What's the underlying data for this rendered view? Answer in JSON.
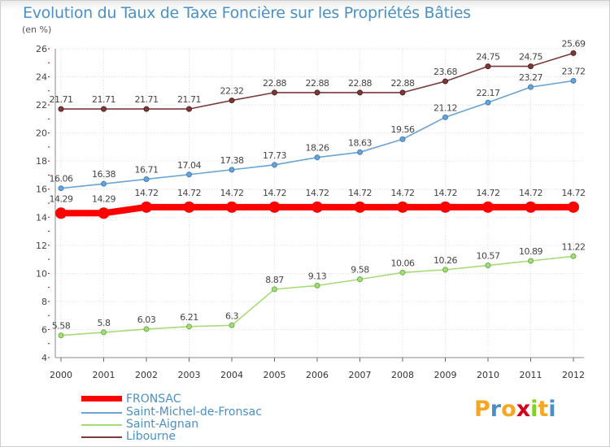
{
  "title": "Evolution du Taux de Taxe Foncière sur les Propriétés Bâties",
  "unit_label": "(en %)",
  "logo": {
    "letters": [
      "P",
      "r",
      "o",
      "x",
      "i",
      "t",
      "i"
    ],
    "colors": [
      "#f5a623",
      "#4a90c4",
      "#f5a623",
      "#d0021b",
      "#7ed321",
      "#f5a623",
      "#4a90c4"
    ]
  },
  "chart_data": {
    "type": "line",
    "title": "Evolution du Taux de Taxe Foncière sur les Propriétés Bâties",
    "ylabel": "(en %)",
    "xlabel": "",
    "x": [
      "2000",
      "2001",
      "2002",
      "2003",
      "2004",
      "2005",
      "2006",
      "2007",
      "2008",
      "2009",
      "2010",
      "2011",
      "2012"
    ],
    "ylim": [
      4,
      26
    ],
    "yticks": [
      "4",
      "6",
      "8",
      "10",
      "12",
      "14",
      "16",
      "18",
      "20",
      "22",
      "24",
      "26"
    ],
    "grid": true,
    "series": [
      {
        "name": "FRONSAC",
        "color": "#ff0000",
        "values": [
          14.29,
          14.29,
          14.72,
          14.72,
          14.72,
          14.72,
          14.72,
          14.72,
          14.72,
          14.72,
          14.72,
          14.72,
          14.72
        ],
        "labels": [
          "14.29",
          "14.29",
          "14.72",
          "14.72",
          "14.72",
          "14.72",
          "14.72",
          "14.72",
          "14.72",
          "14.72",
          "14.72",
          "14.72",
          "14.72"
        ]
      },
      {
        "name": "Saint-Michel-de-Fronsac",
        "color": "#6aa3d5",
        "values": [
          16.06,
          16.38,
          16.71,
          17.04,
          17.38,
          17.73,
          18.26,
          18.63,
          19.56,
          21.12,
          22.17,
          23.27,
          23.72
        ],
        "labels": [
          "16.06",
          "16.38",
          "16.71",
          "17.04",
          "17.38",
          "17.73",
          "18.26",
          "18.63",
          "19.56",
          "21.12",
          "22.17",
          "23.27",
          "23.72"
        ]
      },
      {
        "name": "Saint-Aignan",
        "color": "#a6dc78",
        "values": [
          5.58,
          5.8,
          6.03,
          6.21,
          6.3,
          8.87,
          9.13,
          9.58,
          10.06,
          10.26,
          10.57,
          10.89,
          11.22
        ],
        "labels": [
          "5.58",
          "5.8",
          "6.03",
          "6.21",
          "6.3",
          "8.87",
          "9.13",
          "9.58",
          "10.06",
          "10.26",
          "10.57",
          "10.89",
          "11.22"
        ]
      },
      {
        "name": "Libourne",
        "color": "#7a3b3b",
        "values": [
          21.71,
          21.71,
          21.71,
          21.71,
          22.32,
          22.88,
          22.88,
          22.88,
          22.88,
          23.68,
          24.75,
          24.75,
          25.69
        ],
        "labels": [
          "21.71",
          "21.71",
          "21.71",
          "21.71",
          "22.32",
          "22.88",
          "22.88",
          "22.88",
          "22.88",
          "23.68",
          "24.75",
          "24.75",
          "25.69"
        ]
      }
    ]
  }
}
